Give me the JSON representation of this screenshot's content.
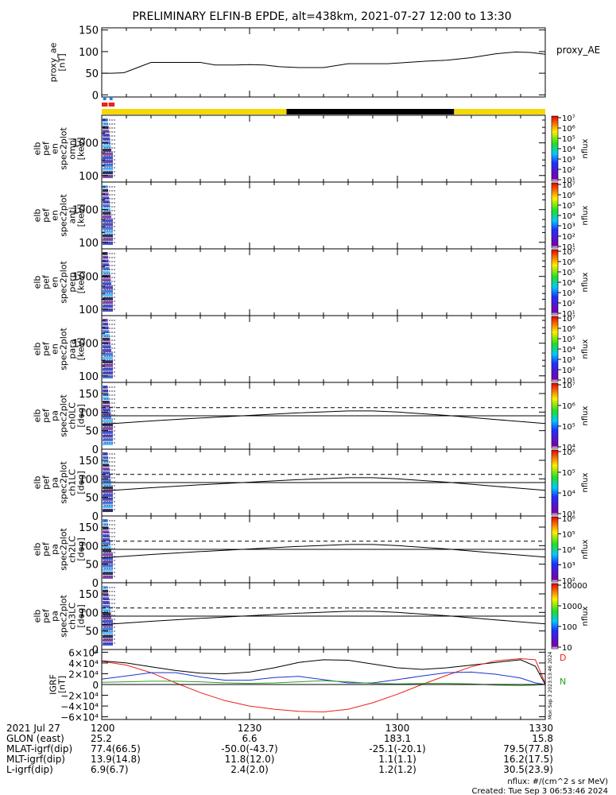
{
  "title": "PRELIMINARY ELFIN-B EPDE, alt=438km, 2021-07-27 12:00 to 13:30",
  "time_axis": {
    "range_min": [
      0,
      90
    ],
    "ticks": [
      {
        "min": 0,
        "label": "1200"
      },
      {
        "min": 30,
        "label": "1230"
      },
      {
        "min": 60,
        "label": "1300"
      },
      {
        "min": 90,
        "label": "1330"
      }
    ]
  },
  "footer": {
    "rows": [
      {
        "label": "2021 Jul 27",
        "values": [
          "1200",
          "1230",
          "1300",
          "1330"
        ]
      },
      {
        "label": "GLON (east)",
        "values": [
          "25.2",
          "6.6",
          "183.1",
          "15.8"
        ]
      },
      {
        "label": "MLAT-igrf(dip)",
        "values": [
          "77.4(66.5)",
          "-50.0(-43.7)",
          "-25.1(-20.1)",
          "79.5(77.8)"
        ]
      },
      {
        "label": "MLT-igrf(dip)",
        "values": [
          "13.9(14.8)",
          "11.8(12.0)",
          "1.1(1.1)",
          "16.2(17.5)"
        ]
      },
      {
        "label": "L-igrf(dip)",
        "values": [
          "6.9(6.7)",
          "2.4(2.0)",
          "1.2(1.2)",
          "30.5(23.9)"
        ]
      }
    ],
    "units_note": "nflux: #/(cm^2 s sr MeV)",
    "created": "Created: Tue Sep  3 06:53:46 2024",
    "side_stamp": "Mon Sep  3 2023:53:46 2024"
  },
  "orbit_bar": {
    "segments": [
      {
        "from": 0,
        "to": 37.5,
        "color": "#f5d800"
      },
      {
        "from": 37.5,
        "to": 71.5,
        "color": "#000000"
      },
      {
        "from": 71.5,
        "to": 90,
        "color": "#f5d800"
      }
    ],
    "marks_top": [
      {
        "from": 0.3,
        "to": 0.9,
        "color": "#2b7bd9"
      },
      {
        "from": 1.6,
        "to": 2.2,
        "color": "#2b7bd9"
      }
    ],
    "marks_bottom": [
      {
        "from": 0,
        "to": 1.2,
        "color": "#e8221c"
      },
      {
        "from": 1.4,
        "to": 2.6,
        "color": "#e8221c"
      }
    ]
  },
  "chart_data": [
    {
      "type": "line",
      "panel": "proxy_ae",
      "ylabel": [
        "proxy_ae",
        "[nT]"
      ],
      "legend": "proxy_AE",
      "ylim": [
        -5,
        155
      ],
      "yticks": [
        0,
        50,
        100,
        150
      ],
      "series": [
        {
          "name": "proxy_AE",
          "color": "#000000",
          "x": [
            0,
            2,
            4.5,
            7,
            10,
            15,
            20,
            23,
            27,
            30,
            33,
            36,
            40,
            45,
            50,
            55,
            58,
            62,
            66,
            70,
            75,
            80,
            84,
            87,
            90
          ],
          "y": [
            50,
            50,
            51,
            62,
            75,
            75,
            75,
            69,
            69,
            70,
            69,
            65,
            63,
            63,
            72,
            72,
            72,
            75,
            78,
            80,
            86,
            95,
            99,
            98,
            94
          ]
        }
      ]
    },
    {
      "type": "heatmap",
      "panel": "omni",
      "ylabel": [
        "elb",
        "pef",
        "en",
        "spec2plot",
        "omni",
        "[keV]"
      ],
      "yscale": "log",
      "ylim": [
        63,
        7000
      ],
      "yticks": [
        100,
        1000
      ],
      "zlabel": "nflux",
      "ztick_exponents": [
        1,
        2,
        3,
        4,
        5,
        6,
        7
      ],
      "data_window_min": [
        0,
        3
      ]
    },
    {
      "type": "heatmap",
      "panel": "anti",
      "ylabel": [
        "elb",
        "pef",
        "en",
        "spec2plot",
        "anti",
        "[keV]"
      ],
      "yscale": "log",
      "ylim": [
        63,
        7000
      ],
      "yticks": [
        100,
        1000
      ],
      "zlabel": "nflux",
      "ztick_exponents": [
        1,
        2,
        3,
        4,
        5,
        6,
        7
      ],
      "data_window_min": [
        0,
        3
      ]
    },
    {
      "type": "heatmap",
      "panel": "perp",
      "ylabel": [
        "elb",
        "pef",
        "en",
        "spec2plot",
        "perp",
        "[keV]"
      ],
      "yscale": "log",
      "ylim": [
        63,
        7000
      ],
      "yticks": [
        100,
        1000
      ],
      "zlabel": "nflux",
      "ztick_exponents": [
        1,
        2,
        3,
        4,
        5,
        6,
        7
      ],
      "data_window_min": [
        0,
        3
      ]
    },
    {
      "type": "heatmap",
      "panel": "para",
      "ylabel": [
        "elb",
        "pef",
        "en",
        "spec2plot",
        "para",
        "[keV]"
      ],
      "yscale": "log",
      "ylim": [
        63,
        7000
      ],
      "yticks": [
        100,
        1000
      ],
      "zlabel": "nflux",
      "ztick_exponents": [
        1,
        2,
        3,
        4,
        5,
        6,
        7
      ],
      "data_window_min": [
        0,
        3
      ]
    },
    {
      "type": "heatmap",
      "panel": "ch0LC",
      "ylabel": [
        "elb",
        "pef",
        "pa",
        "spec2plot",
        "ch0LC",
        "[deg]"
      ],
      "ylim": [
        0,
        180
      ],
      "yticks": [
        0,
        50,
        100,
        150
      ],
      "zlabel": "nflux",
      "ztick_exponents": [
        4,
        5,
        6,
        7
      ],
      "data_window_min": [
        0,
        3
      ],
      "lc_dashed": {
        "x": [
          0,
          90
        ],
        "y": [
          112,
          112
        ]
      },
      "lc_solid": {
        "x": [
          0,
          90
        ],
        "y": [
          90,
          90
        ]
      },
      "lc_curve": {
        "x": [
          0,
          10,
          20,
          30,
          40,
          50,
          55,
          60,
          70,
          80,
          90
        ],
        "y": [
          67,
          76,
          84,
          91,
          98,
          103,
          103,
          100,
          91,
          80,
          69
        ]
      }
    },
    {
      "type": "heatmap",
      "panel": "ch1LC",
      "ylabel": [
        "elb",
        "pef",
        "pa",
        "spec2plot",
        "ch1LC",
        "[deg]"
      ],
      "ylim": [
        0,
        180
      ],
      "yticks": [
        0,
        50,
        100,
        150
      ],
      "zlabel": "nflux",
      "ztick_exponents": [
        3,
        4,
        5,
        6
      ],
      "data_window_min": [
        0,
        3
      ],
      "lc_dashed": {
        "x": [
          0,
          90
        ],
        "y": [
          112,
          112
        ]
      },
      "lc_solid": {
        "x": [
          0,
          90
        ],
        "y": [
          90,
          90
        ]
      },
      "lc_curve": {
        "x": [
          0,
          10,
          20,
          30,
          40,
          50,
          55,
          60,
          70,
          80,
          90
        ],
        "y": [
          67,
          76,
          84,
          91,
          98,
          103,
          103,
          100,
          91,
          80,
          69
        ]
      }
    },
    {
      "type": "heatmap",
      "panel": "ch2LC",
      "ylabel": [
        "elb",
        "pef",
        "pa",
        "spec2plot",
        "ch2LC",
        "[deg]"
      ],
      "ylim": [
        0,
        180
      ],
      "yticks": [
        0,
        50,
        100,
        150
      ],
      "zlabel": "nflux",
      "ztick_exponents": [
        2,
        3,
        4,
        5,
        6
      ],
      "data_window_min": [
        0,
        3
      ],
      "lc_dashed": {
        "x": [
          0,
          90
        ],
        "y": [
          112,
          112
        ]
      },
      "lc_solid": {
        "x": [
          0,
          90
        ],
        "y": [
          90,
          90
        ]
      },
      "lc_curve": {
        "x": [
          0,
          10,
          20,
          30,
          40,
          50,
          55,
          60,
          70,
          80,
          90
        ],
        "y": [
          67,
          76,
          84,
          91,
          98,
          103,
          103,
          100,
          91,
          80,
          69
        ]
      }
    },
    {
      "type": "heatmap",
      "panel": "ch3LC",
      "ylabel": [
        "elb",
        "pef",
        "pa",
        "spec2plot",
        "ch3LC",
        "[deg]"
      ],
      "ylim": [
        0,
        180
      ],
      "yticks": [
        0,
        50,
        100,
        150
      ],
      "zlabel": "nflux",
      "zticks": [
        "10",
        "100",
        "1000",
        "10000"
      ],
      "data_window_min": [
        0,
        3
      ],
      "lc_dashed": {
        "x": [
          0,
          90
        ],
        "y": [
          112,
          112
        ]
      },
      "lc_solid": {
        "x": [
          0,
          90
        ],
        "y": [
          90,
          90
        ]
      },
      "lc_curve": {
        "x": [
          0,
          10,
          20,
          30,
          40,
          50,
          55,
          60,
          70,
          80,
          90
        ],
        "y": [
          67,
          76,
          84,
          91,
          98,
          103,
          103,
          100,
          91,
          80,
          69
        ]
      }
    },
    {
      "type": "line",
      "panel": "igrf",
      "ylabel": [
        "IGRF",
        "[nT]"
      ],
      "ylim": [
        -65000,
        65000
      ],
      "yticks": [
        -60000,
        -40000,
        -20000,
        0,
        20000,
        40000,
        60000
      ],
      "ytick_labels": [
        "−6×10⁴",
        "−4×10⁴",
        "−2×10⁴",
        "0",
        "2×10⁴",
        "4×10⁴",
        "6×10⁴"
      ],
      "legend_labels": [
        {
          "text": "D",
          "color": "#e8221c"
        },
        {
          "text": "N",
          "color": "#2aa02a"
        }
      ],
      "series": [
        {
          "color": "#000000",
          "x": [
            0,
            5,
            10,
            15,
            20,
            25,
            30,
            35,
            40,
            45,
            50,
            55,
            60,
            65,
            70,
            75,
            80,
            85,
            88,
            90
          ],
          "y": [
            44000,
            40000,
            33000,
            26000,
            21000,
            20000,
            23000,
            31000,
            41000,
            46000,
            45000,
            38000,
            31000,
            28000,
            31000,
            36000,
            41000,
            46000,
            34000,
            0
          ]
        },
        {
          "color": "#e8221c",
          "x": [
            0,
            5,
            10,
            15,
            20,
            25,
            30,
            35,
            40,
            45,
            50,
            55,
            60,
            65,
            70,
            75,
            80,
            85,
            88,
            90
          ],
          "y": [
            43000,
            36000,
            22000,
            3000,
            -15000,
            -30000,
            -40000,
            -46000,
            -50000,
            -51000,
            -46000,
            -34000,
            -18000,
            0,
            17000,
            33000,
            44000,
            48000,
            46000,
            2000
          ]
        },
        {
          "color": "#1a33cc",
          "x": [
            0,
            5,
            10,
            15,
            20,
            25,
            30,
            35,
            40,
            45,
            50,
            55,
            60,
            65,
            70,
            75,
            80,
            85,
            88,
            90
          ],
          "y": [
            10000,
            16000,
            22000,
            22000,
            14000,
            8000,
            8000,
            13000,
            15000,
            9000,
            3000,
            3000,
            9000,
            16000,
            22000,
            23000,
            19000,
            12000,
            3000,
            0
          ]
        },
        {
          "color": "#2aa02a",
          "x": [
            0,
            5,
            10,
            15,
            20,
            25,
            30,
            35,
            40,
            45,
            50,
            55,
            60,
            65,
            70,
            75,
            80,
            85,
            88,
            90
          ],
          "y": [
            4000,
            5000,
            6000,
            6000,
            5000,
            3000,
            2000,
            3000,
            5000,
            7000,
            5000,
            2000,
            1000,
            2000,
            2000,
            1000,
            -1000,
            -2000,
            -1000,
            0
          ]
        },
        {
          "color": "#000000",
          "x": [
            0,
            90
          ],
          "y": [
            0,
            0
          ]
        }
      ]
    }
  ]
}
